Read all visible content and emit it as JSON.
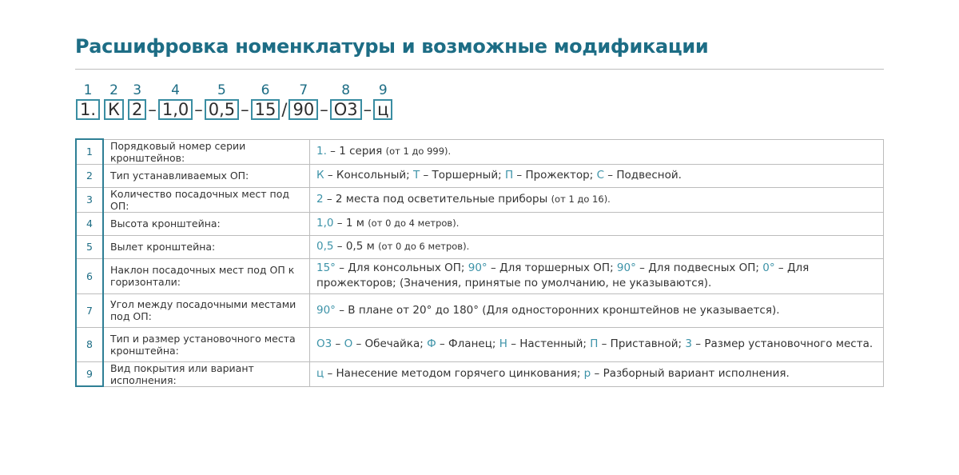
{
  "title": "Расшифровка номенклатуры и возможные модификации",
  "code_parts": [
    {
      "num": "1",
      "code": "1.",
      "sep": ""
    },
    {
      "num": "2",
      "code": "К",
      "sep": ""
    },
    {
      "num": "3",
      "code": "2",
      "sep": "–"
    },
    {
      "num": "4",
      "code": "1,0",
      "sep": "–"
    },
    {
      "num": "5",
      "code": "0,5",
      "sep": "–"
    },
    {
      "num": "6",
      "code": "15",
      "sep": "/"
    },
    {
      "num": "7",
      "code": "90",
      "sep": "–"
    },
    {
      "num": "8",
      "code": "О3",
      "sep": "–"
    },
    {
      "num": "9",
      "code": "ц",
      "sep": ""
    }
  ],
  "colors": {
    "title": "#1d6d85",
    "code": "#3d93a8",
    "border": "#2e7f95"
  },
  "rows": [
    {
      "n": "1",
      "label": "Порядковый номер серии кронштейнов:",
      "value": [
        {
          "c": "1."
        },
        {
          "t": " – 1 серия "
        },
        {
          "s": "(от 1 до 999)."
        }
      ]
    },
    {
      "n": "2",
      "label": "Тип устанавливаемых ОП:",
      "value": [
        {
          "c": "К"
        },
        {
          "t": " – Консольный; "
        },
        {
          "c": "Т"
        },
        {
          "t": " – Торшерный; "
        },
        {
          "c": "П"
        },
        {
          "t": " – Прожектор; "
        },
        {
          "c": "С"
        },
        {
          "t": " – Подвесной."
        }
      ]
    },
    {
      "n": "3",
      "label": "Количество посадочных мест под ОП:",
      "value": [
        {
          "c": "2"
        },
        {
          "t": " – 2 места под осветительные приборы "
        },
        {
          "s": "(от 1 до 16)."
        }
      ]
    },
    {
      "n": "4",
      "label": "Высота кронштейна:",
      "value": [
        {
          "c": "1,0"
        },
        {
          "t": " – 1 м "
        },
        {
          "s": "(от 0 до 4 метров)."
        }
      ]
    },
    {
      "n": "5",
      "label": "Вылет кронштейна:",
      "value": [
        {
          "c": "0,5"
        },
        {
          "t": " – 0,5 м "
        },
        {
          "s": "(от 0 до 6 метров)."
        }
      ]
    },
    {
      "n": "6",
      "label": "Наклон посадочных мест под ОП к горизонтали:",
      "value": [
        {
          "c": "15°"
        },
        {
          "t": " – Для консольных ОП; "
        },
        {
          "c": "90°"
        },
        {
          "t": " – Для торшерных ОП; "
        },
        {
          "c": "90°"
        },
        {
          "t": " – Для подвесных ОП; "
        },
        {
          "c": "0°"
        },
        {
          "t": " – Для прожекторов; (Значения, принятые по умолчанию, не указываются)."
        }
      ]
    },
    {
      "n": "7",
      "label": "Угол между посадочными местами под ОП:",
      "value": [
        {
          "c": "90°"
        },
        {
          "t": " – В плане от 20° до 180° (Для односторонних кронштейнов не указывается)."
        }
      ]
    },
    {
      "n": "8",
      "label": "Тип и размер установочного места кронштейна:",
      "value": [
        {
          "c": "О3"
        },
        {
          "t": " – "
        },
        {
          "c": "О"
        },
        {
          "t": " – Обечайка; "
        },
        {
          "c": "Ф"
        },
        {
          "t": " – Фланец; "
        },
        {
          "c": "Н"
        },
        {
          "t": " – Настенный; "
        },
        {
          "c": "П"
        },
        {
          "t": " – Приставной; "
        },
        {
          "c": "3"
        },
        {
          "t": " – Размер установочного места."
        }
      ]
    },
    {
      "n": "9",
      "label": "Вид покрытия или вариант исполнения:",
      "value": [
        {
          "c": "ц"
        },
        {
          "t": " – Нанесение методом горячего цинкования; "
        },
        {
          "c": "р"
        },
        {
          "t": " – Разборный вариант исполнения."
        }
      ]
    }
  ]
}
